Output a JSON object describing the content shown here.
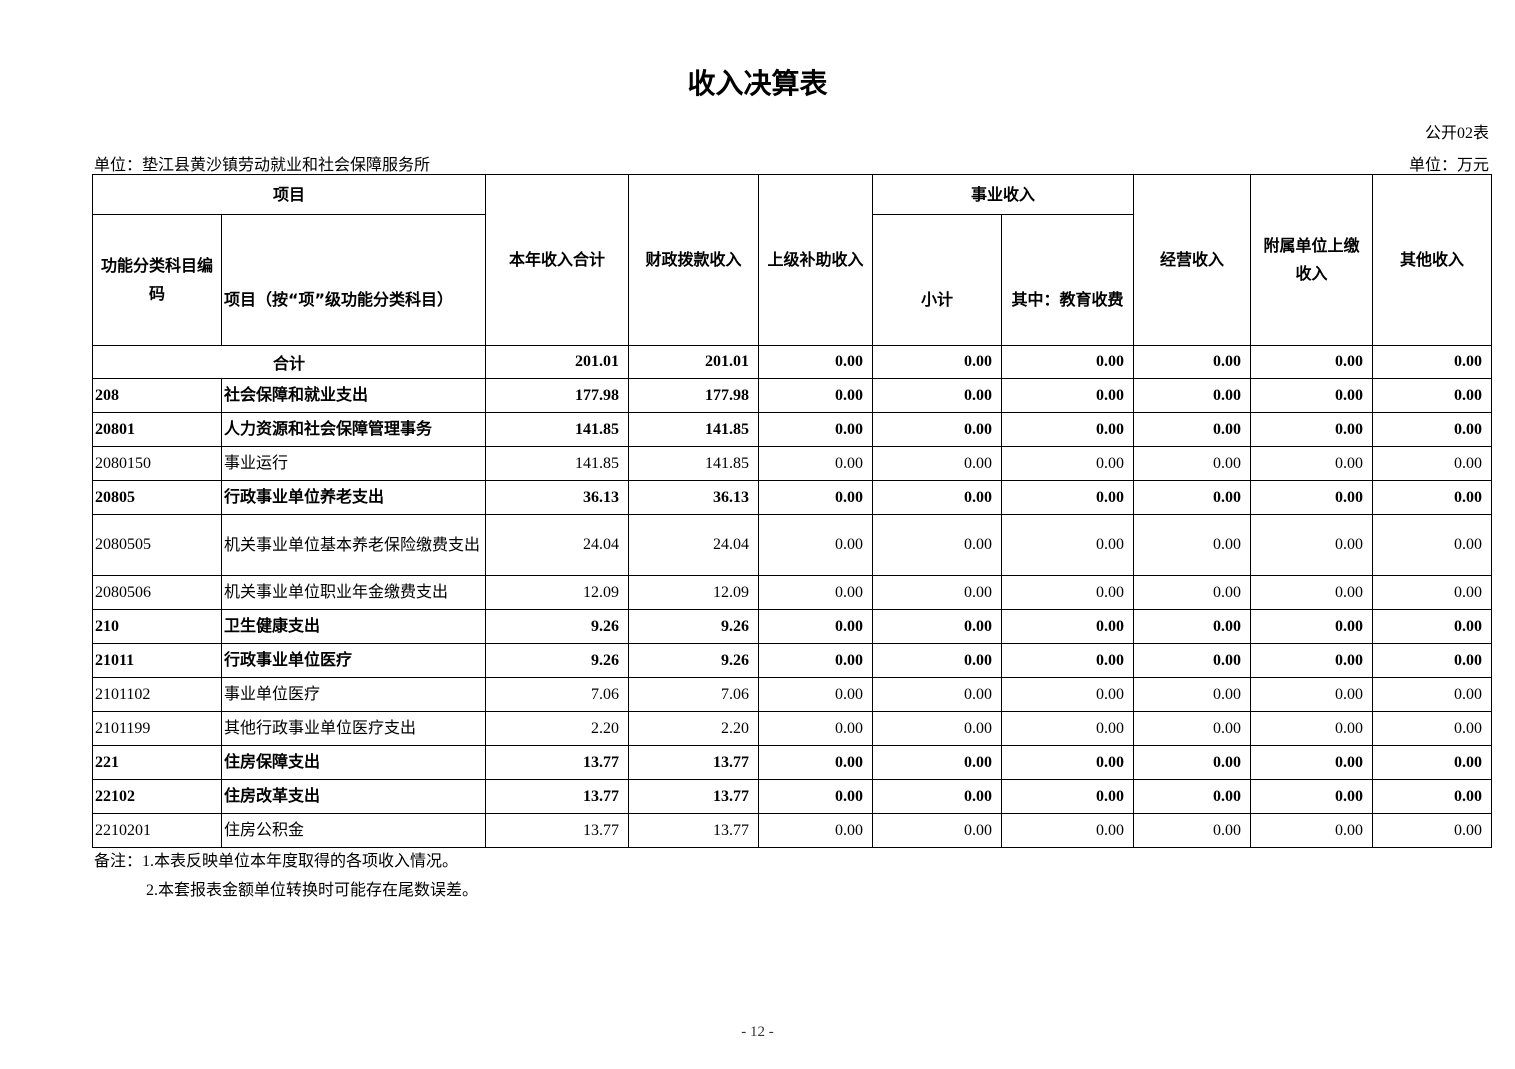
{
  "title": "收入决算表",
  "table_no": "公开02表",
  "unit_left": "单位：垫江县黄沙镇劳动就业和社会保障服务所",
  "unit_right": "单位：万元",
  "headers": {
    "project": "项目",
    "code": "功能分类科目编码",
    "item": "项目（按“项”级功能分类科目）",
    "total": "本年收入合计",
    "fiscal": "财政拨款收入",
    "superior": "上级补助收入",
    "career": "事业收入",
    "subtotal": "小计",
    "education": "其中：教育收费",
    "operating": "经营收入",
    "affiliated": "附属单位上缴收入",
    "other": "其他收入"
  },
  "total_row": {
    "label": "合计",
    "values": [
      "201.01",
      "201.01",
      "0.00",
      "0.00",
      "0.00",
      "0.00",
      "0.00",
      "0.00"
    ]
  },
  "rows": [
    {
      "code": "208",
      "name": "社会保障和就业支出",
      "bold": true,
      "values": [
        "177.98",
        "177.98",
        "0.00",
        "0.00",
        "0.00",
        "0.00",
        "0.00",
        "0.00"
      ]
    },
    {
      "code": "20801",
      "name": "人力资源和社会保障管理事务",
      "bold": true,
      "values": [
        "141.85",
        "141.85",
        "0.00",
        "0.00",
        "0.00",
        "0.00",
        "0.00",
        "0.00"
      ]
    },
    {
      "code": "2080150",
      "name": "事业运行",
      "bold": false,
      "values": [
        "141.85",
        "141.85",
        "0.00",
        "0.00",
        "0.00",
        "0.00",
        "0.00",
        "0.00"
      ]
    },
    {
      "code": "20805",
      "name": "行政事业单位养老支出",
      "bold": true,
      "values": [
        "36.13",
        "36.13",
        "0.00",
        "0.00",
        "0.00",
        "0.00",
        "0.00",
        "0.00"
      ]
    },
    {
      "code": "2080505",
      "name": "机关事业单位基本养老保险缴费支出",
      "bold": false,
      "values": [
        "24.04",
        "24.04",
        "0.00",
        "0.00",
        "0.00",
        "0.00",
        "0.00",
        "0.00"
      ]
    },
    {
      "code": "2080506",
      "name": "机关事业单位职业年金缴费支出",
      "bold": false,
      "values": [
        "12.09",
        "12.09",
        "0.00",
        "0.00",
        "0.00",
        "0.00",
        "0.00",
        "0.00"
      ]
    },
    {
      "code": "210",
      "name": "卫生健康支出",
      "bold": true,
      "values": [
        "9.26",
        "9.26",
        "0.00",
        "0.00",
        "0.00",
        "0.00",
        "0.00",
        "0.00"
      ]
    },
    {
      "code": "21011",
      "name": "行政事业单位医疗",
      "bold": true,
      "values": [
        "9.26",
        "9.26",
        "0.00",
        "0.00",
        "0.00",
        "0.00",
        "0.00",
        "0.00"
      ]
    },
    {
      "code": "2101102",
      "name": "事业单位医疗",
      "bold": false,
      "values": [
        "7.06",
        "7.06",
        "0.00",
        "0.00",
        "0.00",
        "0.00",
        "0.00",
        "0.00"
      ]
    },
    {
      "code": "2101199",
      "name": "其他行政事业单位医疗支出",
      "bold": false,
      "values": [
        "2.20",
        "2.20",
        "0.00",
        "0.00",
        "0.00",
        "0.00",
        "0.00",
        "0.00"
      ]
    },
    {
      "code": "221",
      "name": "住房保障支出",
      "bold": true,
      "values": [
        "13.77",
        "13.77",
        "0.00",
        "0.00",
        "0.00",
        "0.00",
        "0.00",
        "0.00"
      ]
    },
    {
      "code": "22102",
      "name": "住房改革支出",
      "bold": true,
      "values": [
        "13.77",
        "13.77",
        "0.00",
        "0.00",
        "0.00",
        "0.00",
        "0.00",
        "0.00"
      ]
    },
    {
      "code": "2210201",
      "name": "住房公积金",
      "bold": false,
      "values": [
        "13.77",
        "13.77",
        "0.00",
        "0.00",
        "0.00",
        "0.00",
        "0.00",
        "0.00"
      ]
    }
  ],
  "notes": [
    "备注：1.本表反映单位本年度取得的各项收入情况。",
    "2.本套报表金额单位转换时可能存在尾数误差。"
  ],
  "page_number": "- 12 -"
}
